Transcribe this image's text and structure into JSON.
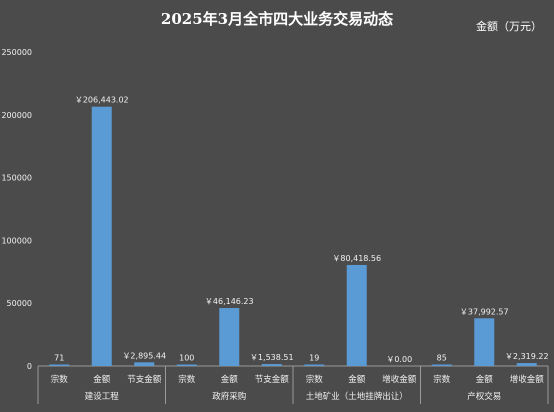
{
  "chart_data": {
    "type": "bar",
    "title": "2025年3月全市四大业务交易动态",
    "unit_label": "金额（万元）",
    "ylim": [
      0,
      250000
    ],
    "yticks": [
      "0",
      "50000",
      "100000",
      "150000",
      "200000",
      "250000"
    ],
    "grid": false,
    "bar_color": "#5b9bd5",
    "groups": [
      {
        "name": "建设工程",
        "categories": [
          "宗数",
          "金额",
          "节支金额"
        ],
        "values": [
          71,
          206443.02,
          2895.44
        ],
        "data_labels": [
          "71",
          "￥206,443.02",
          "￥2,895.44"
        ]
      },
      {
        "name": "政府采购",
        "categories": [
          "宗数",
          "金额",
          "节支金额"
        ],
        "values": [
          100,
          46146.23,
          1538.51
        ],
        "data_labels": [
          "100",
          "￥46,146.23",
          "￥1,538.51"
        ]
      },
      {
        "name": "土地矿业（土地挂牌出让）",
        "categories": [
          "宗数",
          "金额",
          "增收金额"
        ],
        "values": [
          19,
          80418.56,
          0
        ],
        "data_labels": [
          "19",
          "￥80,418.56",
          "￥0.00"
        ]
      },
      {
        "name": "产权交易",
        "categories": [
          "宗数",
          "金额",
          "增收金额"
        ],
        "values": [
          85,
          37992.57,
          2319.22
        ],
        "data_labels": [
          "85",
          "￥37,992.57",
          "￥2,319.22"
        ]
      }
    ]
  }
}
